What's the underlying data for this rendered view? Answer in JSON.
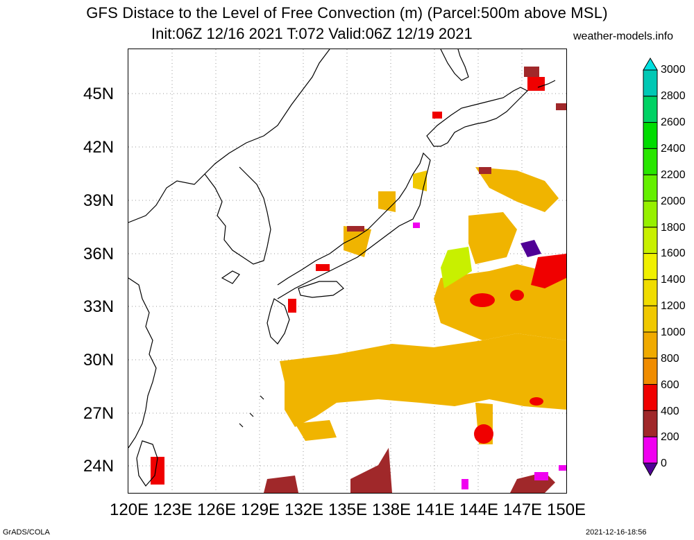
{
  "title": {
    "line1": "GFS Distace to the Level of Free Convection (m) (Parcel:500m above MSL)",
    "line2": "Init:06Z 12/16 2021 T:072 Valid:06Z 12/19 2021",
    "site": "weather-models.info"
  },
  "axes": {
    "lat_labels": [
      "45N",
      "42N",
      "39N",
      "36N",
      "33N",
      "30N",
      "27N",
      "24N"
    ],
    "lon_labels": [
      "120E",
      "123E",
      "126E",
      "129E",
      "132E",
      "135E",
      "138E",
      "141E",
      "144E",
      "147E",
      "150E"
    ]
  },
  "colorbar": {
    "labels": [
      "3000",
      "2800",
      "2600",
      "2400",
      "2200",
      "2000",
      "1800",
      "1600",
      "1400",
      "1200",
      "1000",
      "800",
      "600",
      "400",
      "200",
      "0"
    ],
    "colors": [
      "#00e0e0",
      "#00c8b4",
      "#00d264",
      "#00dc00",
      "#28e600",
      "#64f000",
      "#96f000",
      "#c8f000",
      "#f0f000",
      "#f0dc00",
      "#f0c800",
      "#f0aa00",
      "#f08c00",
      "#f00000",
      "#a0282a",
      "#f000f0",
      "#500096"
    ]
  },
  "footer": {
    "left": "GrADS/COLA",
    "right": "2021-12-16-18:56"
  }
}
